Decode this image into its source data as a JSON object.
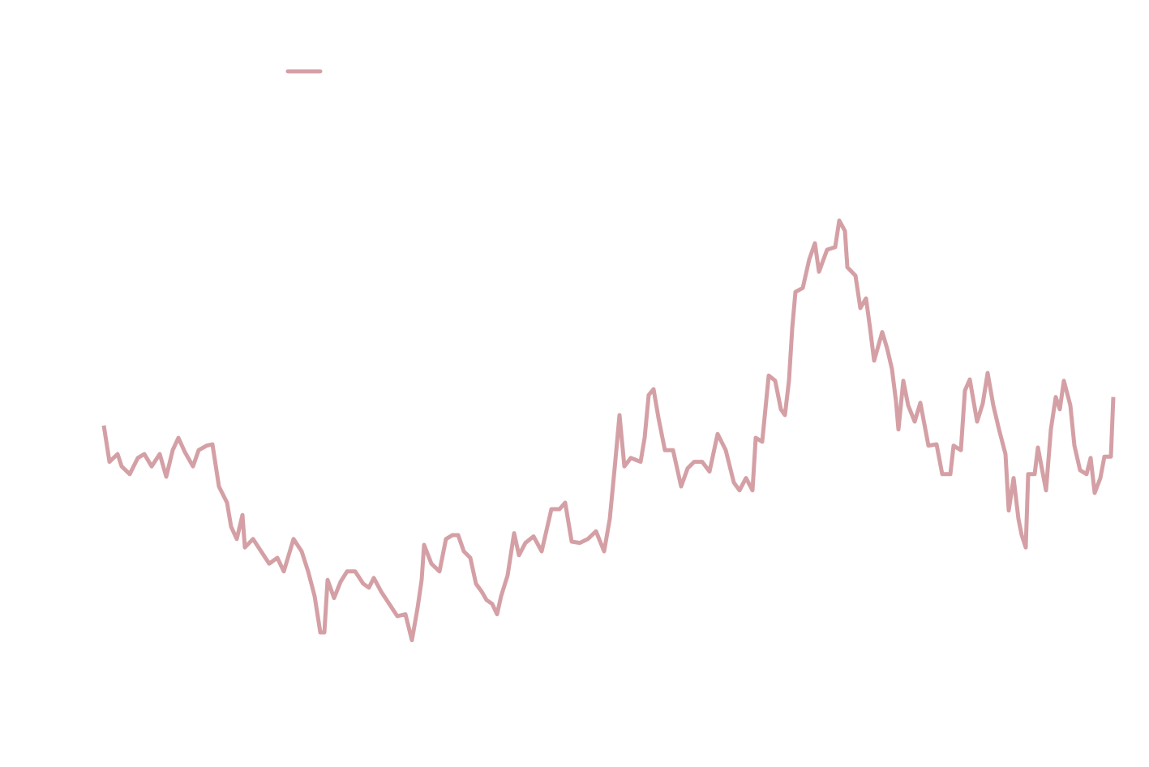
{
  "chart_data": {
    "type": "line",
    "legend": true,
    "xlim": [
      0,
      1245
    ],
    "ylim": [
      0,
      100
    ],
    "x": [
      0,
      7,
      17,
      22,
      32,
      42,
      50,
      59,
      69,
      77,
      85,
      92,
      100,
      110,
      117,
      127,
      134,
      142,
      152,
      157,
      164,
      171,
      174,
      184,
      194,
      204,
      214,
      222,
      234,
      244,
      252,
      260,
      267,
      272,
      276,
      284,
      292,
      300,
      310,
      320,
      327,
      333,
      342,
      352,
      362,
      372,
      380,
      387,
      392,
      395,
      404,
      414,
      422,
      430,
      437,
      444,
      452,
      459,
      466,
      472,
      479,
      485,
      490,
      498,
      506,
      512,
      520,
      530,
      540,
      552,
      562,
      569,
      577,
      587,
      597,
      607,
      617,
      624,
      630,
      636,
      642,
      650,
      662,
      667,
      672,
      678,
      684,
      692,
      702,
      712,
      720,
      728,
      738,
      747,
      757,
      767,
      777,
      784,
      792,
      800,
      804,
      812,
      820,
      828,
      835,
      840,
      845,
      849,
      853,
      862,
      870,
      877,
      882,
      892,
      902,
      907,
      914,
      917,
      927,
      933,
      940,
      945,
      950,
      960,
      966,
      972,
      977,
      980,
      986,
      992,
      1000,
      1007,
      1017,
      1027,
      1034,
      1044,
      1048,
      1057,
      1062,
      1068,
      1077,
      1084,
      1090,
      1097,
      1104,
      1112,
      1116,
      1122,
      1128,
      1132,
      1137,
      1140,
      1148,
      1152,
      1162,
      1168,
      1174,
      1179,
      1184,
      1192,
      1197,
      1204,
      1212,
      1217,
      1222,
      1229,
      1234,
      1242,
      1245
    ],
    "series": [
      {
        "color": "#d4a0a5",
        "values": [
          46.9,
          41.3,
          42.5,
          40.6,
          39.4,
          41.9,
          42.5,
          40.6,
          42.5,
          39.0,
          43.1,
          45.0,
          42.8,
          40.6,
          43.1,
          43.8,
          44.0,
          37.5,
          35.0,
          31.3,
          29.4,
          33.1,
          28.1,
          29.4,
          27.5,
          25.6,
          26.5,
          24.4,
          29.4,
          27.5,
          24.4,
          20.6,
          15.0,
          15.0,
          23.1,
          20.3,
          22.8,
          24.4,
          24.4,
          22.5,
          21.9,
          23.4,
          21.3,
          19.4,
          17.5,
          17.8,
          13.8,
          18.8,
          23.1,
          28.5,
          25.6,
          24.4,
          29.4,
          30.0,
          30.0,
          27.5,
          26.5,
          22.5,
          21.3,
          20.0,
          19.4,
          17.8,
          20.6,
          23.8,
          30.3,
          26.9,
          28.8,
          29.8,
          27.5,
          34.0,
          34.0,
          35.0,
          29.0,
          28.8,
          29.4,
          30.6,
          27.5,
          32.5,
          40.3,
          48.5,
          40.6,
          41.9,
          41.3,
          45.0,
          51.6,
          52.5,
          48.1,
          43.1,
          43.1,
          37.5,
          40.3,
          41.3,
          41.3,
          39.8,
          45.6,
          43.1,
          38.1,
          36.9,
          38.8,
          36.9,
          45.0,
          44.4,
          54.6,
          53.8,
          49.4,
          48.5,
          53.8,
          61.9,
          67.5,
          68.1,
          72.5,
          75.0,
          70.6,
          74.0,
          74.4,
          78.5,
          76.9,
          71.3,
          70.0,
          65.0,
          66.5,
          61.9,
          56.9,
          61.3,
          58.8,
          55.6,
          50.6,
          46.3,
          53.8,
          50.0,
          47.5,
          50.4,
          43.8,
          44.0,
          39.4,
          39.4,
          43.8,
          43.1,
          52.3,
          54.0,
          47.5,
          50.3,
          55.0,
          50.0,
          46.3,
          42.5,
          33.8,
          38.8,
          32.5,
          30.0,
          28.1,
          39.4,
          39.4,
          43.5,
          36.9,
          46.3,
          51.3,
          49.4,
          53.8,
          50.0,
          43.8,
          40.0,
          39.4,
          41.9,
          36.5,
          38.8,
          42.1,
          42.1,
          51.3
        ]
      }
    ]
  }
}
